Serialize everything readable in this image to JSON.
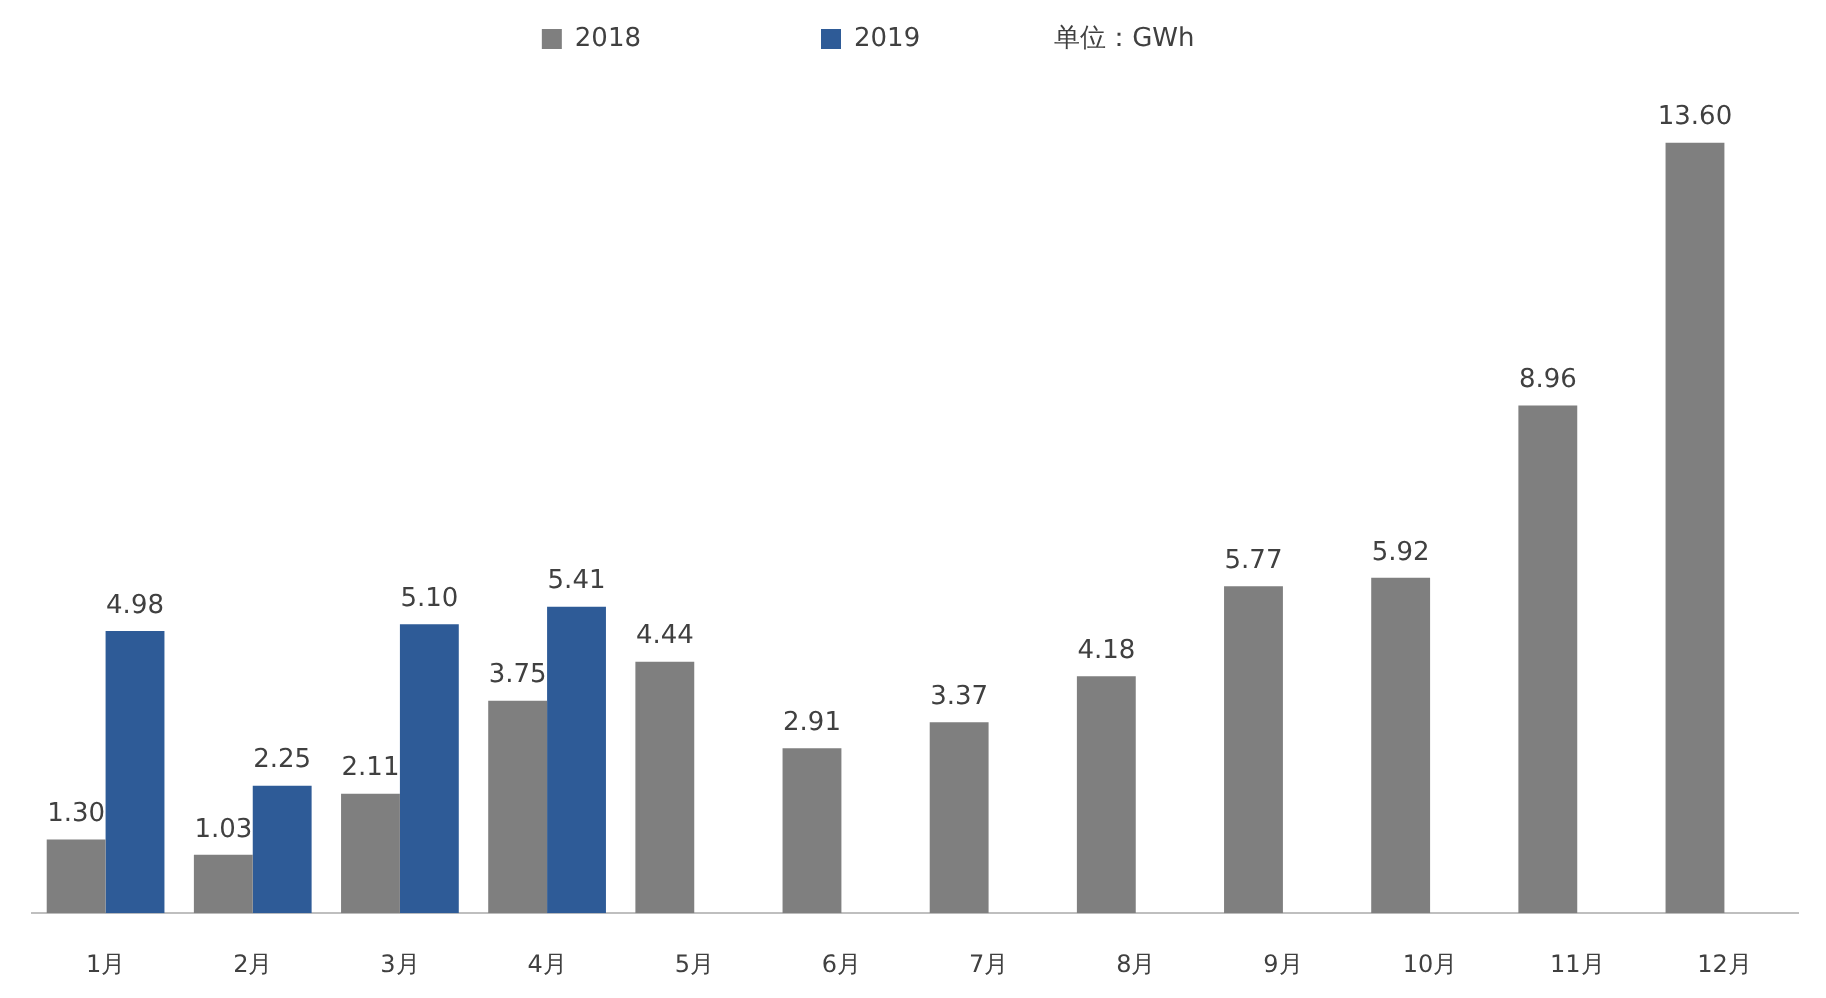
{
  "chart_data": {
    "type": "bar",
    "categories": [
      "1月",
      "2月",
      "3月",
      "4月",
      "5月",
      "6月",
      "7月",
      "8月",
      "9月",
      "10月",
      "11月",
      "12月"
    ],
    "series": [
      {
        "name": "2018",
        "color": "#7f7f7f",
        "values": [
          1.3,
          1.03,
          2.11,
          3.75,
          4.44,
          2.91,
          3.37,
          4.18,
          5.77,
          5.92,
          8.96,
          13.6
        ],
        "value_labels": [
          "1.30",
          "1.03",
          "2.11",
          "3.75",
          "4.44",
          "2.91",
          "3.37",
          "4.18",
          "5.77",
          "5.92",
          "8.96",
          "13.60"
        ]
      },
      {
        "name": "2019",
        "color": "#2e5b97",
        "values": [
          4.98,
          2.25,
          5.1,
          5.41,
          null,
          null,
          null,
          null,
          null,
          null,
          null,
          null
        ],
        "value_labels": [
          "4.98",
          "2.25",
          "5.10",
          "5.41",
          null,
          null,
          null,
          null,
          null,
          null,
          null,
          null
        ]
      }
    ],
    "legend": "top",
    "annotations": [
      "单位：GWh"
    ],
    "grid": false,
    "tick_labels": "x"
  }
}
